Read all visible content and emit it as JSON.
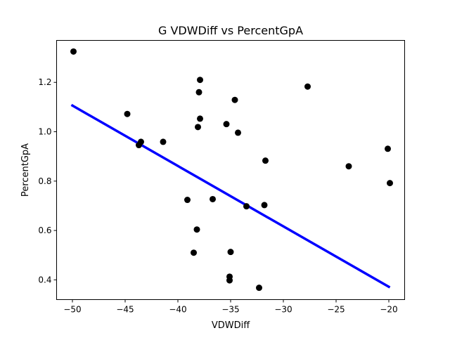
{
  "chart_data": {
    "type": "scatter",
    "title": "G VDWDiff vs PercentGpA",
    "xlabel": "VDWDiff",
    "ylabel": "PercentGpA",
    "xlim": [
      -51.5,
      -18.5
    ],
    "ylim": [
      0.32,
      1.37
    ],
    "xticks": [
      -50,
      -45,
      -40,
      -35,
      -30,
      -25,
      -20
    ],
    "xtick_labels": [
      "−50",
      "−45",
      "−40",
      "−35",
      "−30",
      "−25",
      "−20"
    ],
    "yticks": [
      0.4,
      0.6,
      0.8,
      1.0,
      1.2
    ],
    "ytick_labels": [
      "0.4",
      "0.6",
      "0.8",
      "1.0",
      "1.2"
    ],
    "grid": false,
    "series": [
      {
        "type": "scatter",
        "color": "#000000",
        "points": [
          [
            -49.9,
            1.325
          ],
          [
            -44.8,
            1.072
          ],
          [
            -43.7,
            0.946
          ],
          [
            -43.5,
            0.959
          ],
          [
            -41.4,
            0.959
          ],
          [
            -39.1,
            0.724
          ],
          [
            -38.5,
            0.51
          ],
          [
            -38.2,
            0.604
          ],
          [
            -38.1,
            1.019
          ],
          [
            -38.0,
            1.16
          ],
          [
            -37.9,
            1.21
          ],
          [
            -37.9,
            1.053
          ],
          [
            -36.7,
            0.727
          ],
          [
            -35.4,
            1.031
          ],
          [
            -35.1,
            0.413
          ],
          [
            -35.1,
            0.398
          ],
          [
            -35.0,
            0.513
          ],
          [
            -34.6,
            1.129
          ],
          [
            -34.3,
            0.996
          ],
          [
            -33.5,
            0.698
          ],
          [
            -32.3,
            0.368
          ],
          [
            -31.8,
            0.703
          ],
          [
            -31.7,
            0.883
          ],
          [
            -27.7,
            1.183
          ],
          [
            -23.8,
            0.86
          ],
          [
            -20.1,
            0.931
          ],
          [
            -19.9,
            0.792
          ]
        ]
      },
      {
        "type": "line",
        "color": "#0000ff",
        "points": [
          [
            -50.0,
            1.106
          ],
          [
            -20.0,
            0.372
          ]
        ]
      }
    ]
  }
}
